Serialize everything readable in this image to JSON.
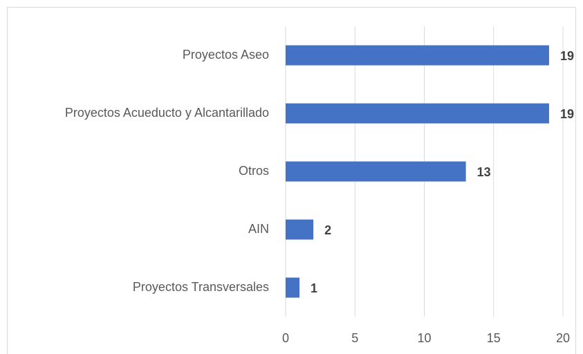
{
  "chart_data": {
    "type": "bar",
    "horizontal": true,
    "categories": [
      "Proyectos Aseo",
      "Proyectos Acueducto y Alcantarillado",
      "Otros",
      "AIN",
      "Proyectos Transversales"
    ],
    "values": [
      19,
      19,
      13,
      2,
      1
    ],
    "color": "#4472c4",
    "xlim": [
      0,
      20
    ],
    "xticks": [
      0,
      5,
      10,
      15,
      20
    ],
    "grid": true
  }
}
